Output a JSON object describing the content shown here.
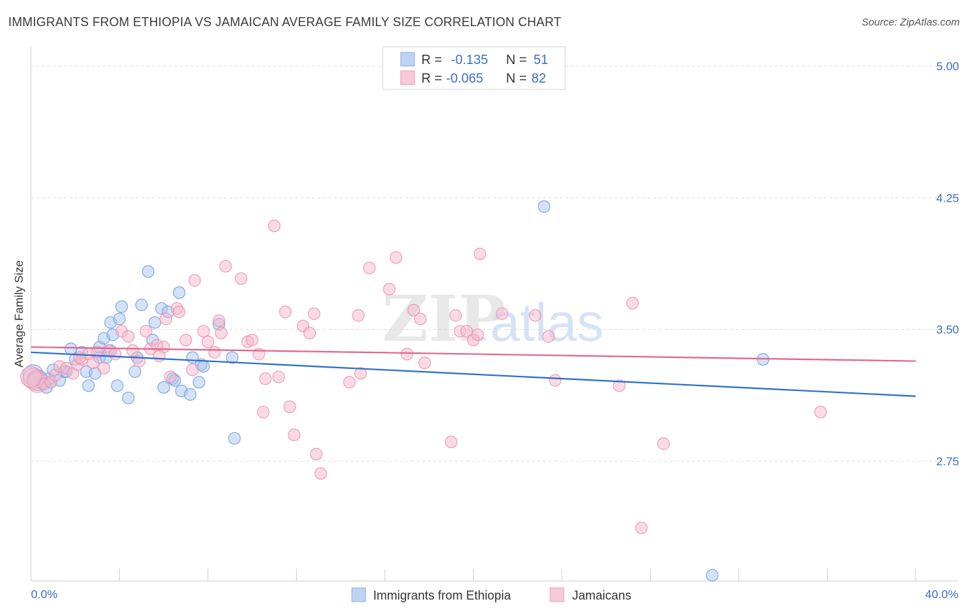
{
  "header": {
    "title": "IMMIGRANTS FROM ETHIOPIA VS JAMAICAN AVERAGE FAMILY SIZE CORRELATION CHART",
    "source": "Source: ZipAtlas.com"
  },
  "watermark": {
    "zip": "ZIP",
    "atlas": "atlas"
  },
  "legend": {
    "rows": [
      {
        "r_label": "R =",
        "r_value": "-0.135",
        "n_label": "N =",
        "n_value": "51",
        "color": "#a9c6ef"
      },
      {
        "r_label": "R =",
        "r_value": "-0.065",
        "n_label": "N =",
        "n_value": "82",
        "color": "#f6b8cb"
      }
    ]
  },
  "bottom_legend": {
    "items": [
      {
        "label": "Immigrants from Ethiopia",
        "color": "#a9c6ef"
      },
      {
        "label": "Jamaicans",
        "color": "#f6b8cb"
      }
    ]
  },
  "chart_data": {
    "type": "scatter",
    "title": "IMMIGRANTS FROM ETHIOPIA VS JAMAICAN AVERAGE FAMILY SIZE CORRELATION CHART",
    "xlabel": "",
    "ylabel": "Average Family Size",
    "xlim": [
      0,
      40
    ],
    "ylim": [
      2.0,
      5.05
    ],
    "x_tick_labels": [
      "0.0%",
      "40.0%"
    ],
    "y_ticks": [
      2.75,
      3.5,
      4.25,
      5.0
    ],
    "y_tick_labels": [
      "2.75",
      "3.50",
      "4.25",
      "5.00"
    ],
    "grid": true,
    "legend_position": "top-center",
    "series": [
      {
        "name": "Immigrants from Ethiopia",
        "color": "#6f9ee0",
        "fill": "#a9c6ef",
        "line_color": "#2e6fcc",
        "trend": {
          "x": [
            0,
            40
          ],
          "y": [
            3.37,
            3.12
          ]
        },
        "points": [
          [
            0.1,
            3.24
          ],
          [
            0.3,
            3.21
          ],
          [
            0.5,
            3.19
          ],
          [
            0.7,
            3.17
          ],
          [
            0.8,
            3.22
          ],
          [
            0.9,
            3.2
          ],
          [
            1.0,
            3.27
          ],
          [
            1.3,
            3.21
          ],
          [
            1.5,
            3.26
          ],
          [
            1.6,
            3.26
          ],
          [
            1.8,
            3.39
          ],
          [
            2.0,
            3.33
          ],
          [
            2.3,
            3.37
          ],
          [
            2.5,
            3.26
          ],
          [
            2.6,
            3.18
          ],
          [
            2.9,
            3.25
          ],
          [
            3.1,
            3.4
          ],
          [
            3.1,
            3.34
          ],
          [
            3.3,
            3.45
          ],
          [
            3.4,
            3.34
          ],
          [
            3.6,
            3.38
          ],
          [
            3.6,
            3.54
          ],
          [
            3.7,
            3.47
          ],
          [
            3.9,
            3.18
          ],
          [
            4.0,
            3.56
          ],
          [
            4.1,
            3.63
          ],
          [
            4.4,
            3.11
          ],
          [
            4.7,
            3.26
          ],
          [
            4.8,
            3.34
          ],
          [
            5.0,
            3.64
          ],
          [
            5.3,
            3.83
          ],
          [
            5.5,
            3.44
          ],
          [
            5.6,
            3.54
          ],
          [
            5.9,
            3.62
          ],
          [
            6.0,
            3.17
          ],
          [
            6.2,
            3.6
          ],
          [
            6.4,
            3.22
          ],
          [
            6.5,
            3.21
          ],
          [
            6.7,
            3.71
          ],
          [
            6.8,
            3.15
          ],
          [
            7.2,
            3.13
          ],
          [
            7.3,
            3.34
          ],
          [
            7.6,
            3.2
          ],
          [
            7.7,
            3.3
          ],
          [
            7.8,
            3.29
          ],
          [
            8.5,
            3.53
          ],
          [
            9.1,
            3.34
          ],
          [
            9.2,
            2.88
          ],
          [
            23.2,
            4.2
          ],
          [
            30.8,
            2.1
          ],
          [
            33.1,
            3.33
          ]
        ]
      },
      {
        "name": "Jamaicans",
        "color": "#ee8fae",
        "fill": "#f6b8cb",
        "line_color": "#e0678f",
        "trend": {
          "x": [
            0,
            40
          ],
          "y": [
            3.4,
            3.32
          ]
        },
        "points": [
          [
            0.1,
            3.22
          ],
          [
            0.3,
            3.2
          ],
          [
            0.6,
            3.19
          ],
          [
            0.9,
            3.2
          ],
          [
            1.1,
            3.24
          ],
          [
            1.3,
            3.29
          ],
          [
            1.6,
            3.28
          ],
          [
            1.9,
            3.25
          ],
          [
            2.1,
            3.3
          ],
          [
            2.3,
            3.33
          ],
          [
            2.6,
            3.36
          ],
          [
            2.8,
            3.31
          ],
          [
            3.0,
            3.37
          ],
          [
            3.3,
            3.28
          ],
          [
            3.5,
            3.38
          ],
          [
            3.8,
            3.36
          ],
          [
            4.1,
            3.49
          ],
          [
            4.4,
            3.46
          ],
          [
            4.6,
            3.38
          ],
          [
            4.9,
            3.32
          ],
          [
            5.2,
            3.49
          ],
          [
            5.4,
            3.39
          ],
          [
            5.7,
            3.41
          ],
          [
            6.0,
            3.4
          ],
          [
            6.1,
            3.56
          ],
          [
            6.3,
            3.23
          ],
          [
            6.6,
            3.62
          ],
          [
            6.7,
            3.6
          ],
          [
            7.0,
            3.44
          ],
          [
            7.3,
            3.27
          ],
          [
            7.4,
            3.78
          ],
          [
            7.8,
            3.49
          ],
          [
            8.0,
            3.43
          ],
          [
            8.3,
            3.37
          ],
          [
            8.5,
            3.55
          ],
          [
            8.6,
            3.48
          ],
          [
            8.8,
            3.86
          ],
          [
            9.5,
            3.79
          ],
          [
            9.8,
            3.43
          ],
          [
            10.0,
            3.44
          ],
          [
            10.3,
            3.36
          ],
          [
            10.5,
            3.03
          ],
          [
            10.6,
            3.22
          ],
          [
            11.0,
            4.09
          ],
          [
            11.2,
            3.23
          ],
          [
            11.5,
            3.6
          ],
          [
            11.7,
            3.06
          ],
          [
            11.9,
            2.9
          ],
          [
            12.3,
            3.52
          ],
          [
            12.6,
            3.48
          ],
          [
            12.8,
            3.59
          ],
          [
            12.9,
            2.79
          ],
          [
            13.1,
            2.68
          ],
          [
            14.4,
            3.2
          ],
          [
            14.8,
            3.58
          ],
          [
            14.9,
            3.25
          ],
          [
            15.3,
            3.85
          ],
          [
            16.2,
            3.73
          ],
          [
            16.5,
            3.91
          ],
          [
            17.0,
            3.36
          ],
          [
            17.3,
            3.61
          ],
          [
            17.6,
            3.56
          ],
          [
            17.8,
            3.31
          ],
          [
            19.0,
            2.86
          ],
          [
            19.2,
            3.58
          ],
          [
            19.4,
            3.49
          ],
          [
            19.7,
            3.49
          ],
          [
            20.0,
            3.44
          ],
          [
            20.2,
            3.47
          ],
          [
            20.3,
            3.93
          ],
          [
            21.3,
            3.59
          ],
          [
            22.8,
            3.58
          ],
          [
            23.4,
            3.46
          ],
          [
            23.7,
            3.21
          ],
          [
            26.6,
            3.18
          ],
          [
            27.2,
            3.65
          ],
          [
            27.6,
            2.37
          ],
          [
            28.6,
            2.85
          ],
          [
            35.7,
            3.03
          ],
          [
            0.0,
            3.23
          ],
          [
            2.2,
            3.34
          ],
          [
            5.8,
            3.35
          ]
        ]
      }
    ]
  }
}
